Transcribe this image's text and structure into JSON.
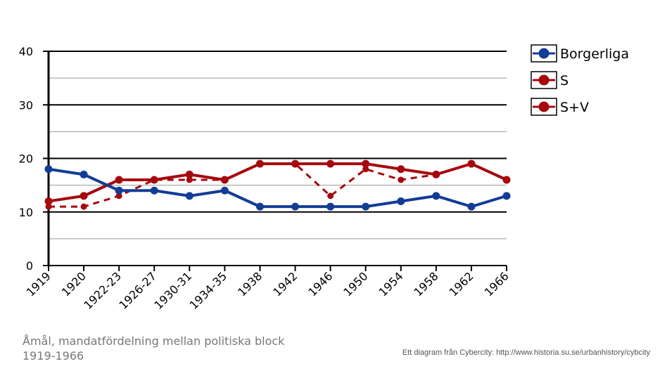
{
  "chart_data": {
    "type": "line",
    "title": "Åmål, mandatfördelning  mellan politiska block 1919-1966",
    "credit": "Ett diagram från Cybercity: http://www.historia.su.se/urbanhistory/cybcity",
    "categories": [
      "1919",
      "1920",
      "1922-23",
      "1926-27",
      "1930-31",
      "1934-35",
      "1938",
      "1942",
      "1946",
      "1950",
      "1954",
      "1958",
      "1962",
      "1966"
    ],
    "ylim": [
      0,
      40
    ],
    "yticks": [
      0,
      10,
      20,
      30,
      40
    ],
    "grid": true,
    "legend_position": "right",
    "series": [
      {
        "name": "Borgerliga",
        "color": "#123c96",
        "style": "solid",
        "values": [
          18,
          17,
          14,
          14,
          13,
          14,
          11,
          11,
          11,
          11,
          12,
          13,
          11,
          13
        ]
      },
      {
        "name": "S",
        "color": "#a5080e",
        "style": "dashed",
        "values": [
          11,
          11,
          13,
          16,
          16,
          16,
          19,
          19,
          13,
          18,
          16,
          17,
          19,
          16
        ]
      },
      {
        "name": "S+V",
        "color": "#a5080e",
        "style": "solid",
        "values": [
          12,
          13,
          16,
          16,
          17,
          16,
          19,
          19,
          19,
          19,
          18,
          17,
          19,
          16
        ]
      }
    ]
  }
}
